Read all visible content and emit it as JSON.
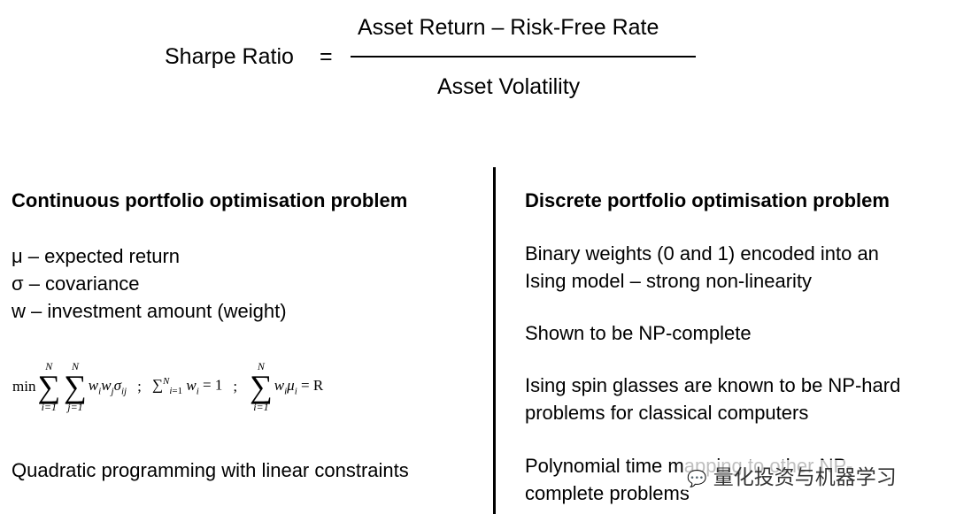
{
  "formula": {
    "lhs": "Sharpe Ratio",
    "equals": "=",
    "numerator": "Asset Return – Risk-Free Rate",
    "denominator": "Asset Volatility"
  },
  "left": {
    "heading": "Continuous portfolio optimisation problem",
    "definitions": [
      "μ – expected return",
      "σ – covariance",
      "w – investment amount (weight)"
    ],
    "equation": {
      "min": "min",
      "sum_upper": "N",
      "sum_lower_i": "i=1",
      "sum_lower_j": "j=1",
      "term1": "w",
      "sep": ";",
      "constraint1_rhs": "= 1",
      "constraint2_rhs": "= R"
    },
    "footer": "Quadratic programming with linear constraints"
  },
  "right": {
    "heading": "Discrete portfolio optimisation problem",
    "items": [
      [
        "Binary weights (0 and 1) encoded into an",
        "Ising model – strong non-linearity"
      ],
      [
        "Shown to be NP-complete"
      ],
      [
        "Ising spin glasses are known to be NP-hard",
        "problems for classical computers"
      ],
      [
        "Polynomial time mapping to other NP-",
        "complete problems"
      ]
    ]
  },
  "watermark": {
    "icon": "wechat-icon",
    "text": "量化投资与机器学习"
  }
}
